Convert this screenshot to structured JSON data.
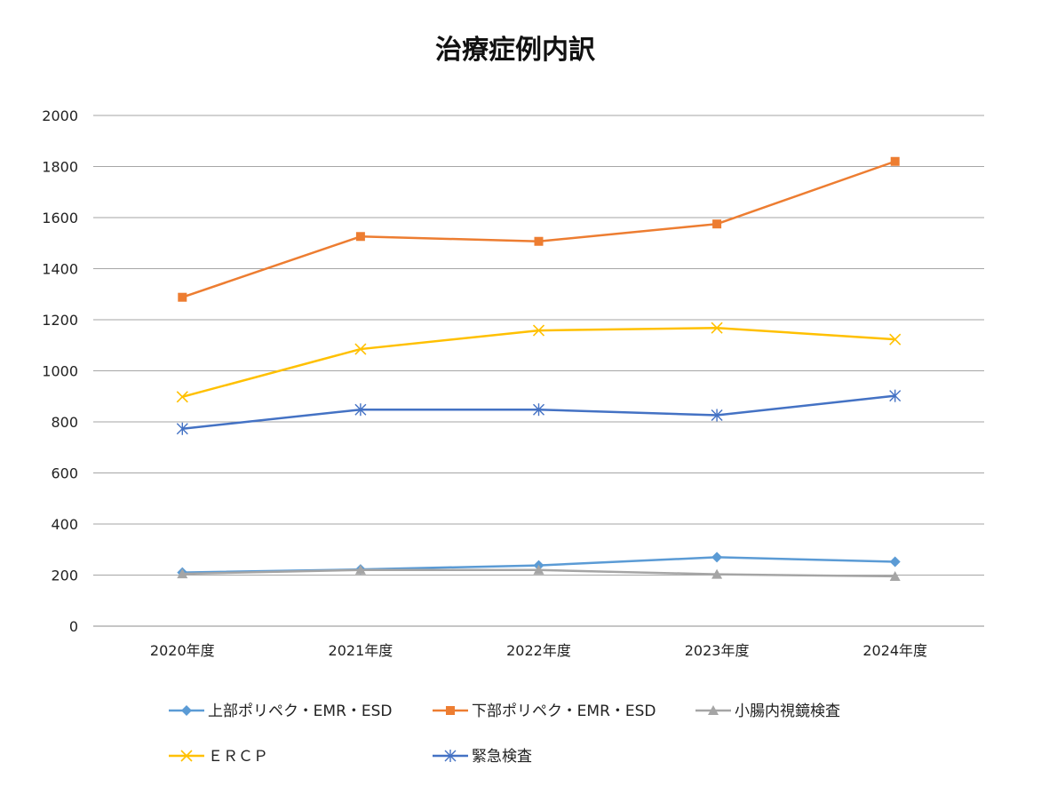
{
  "chart_data": {
    "type": "line",
    "title": "治療症例内訳",
    "xlabel": "",
    "ylabel": "",
    "categories": [
      "2020年度",
      "2021年度",
      "2022年度",
      "2023年度",
      "2024年度"
    ],
    "ylim": [
      0,
      2000
    ],
    "yticks": [
      0,
      200,
      400,
      600,
      800,
      1000,
      1200,
      1400,
      1600,
      1800,
      2000
    ],
    "grid": true,
    "legend_position": "bottom",
    "series": [
      {
        "name": "上部ポリペク・EMR・ESD",
        "color": "#5B9BD5",
        "marker": "diamond",
        "values": [
          210,
          222,
          238,
          270,
          252
        ]
      },
      {
        "name": "下部ポリペク・EMR・ESD",
        "color": "#ED7D31",
        "marker": "square",
        "values": [
          1288,
          1526,
          1507,
          1575,
          1820
        ]
      },
      {
        "name": "小腸内視鏡検査",
        "color": "#A5A5A5",
        "marker": "triangle",
        "values": [
          205,
          220,
          220,
          203,
          195
        ]
      },
      {
        "name": "ＥＲＣＰ",
        "color": "#FFC000",
        "marker": "x",
        "values": [
          898,
          1085,
          1158,
          1168,
          1123
        ]
      },
      {
        "name": "緊急検査",
        "color": "#4472C4",
        "marker": "star",
        "values": [
          773,
          848,
          848,
          826,
          902
        ]
      }
    ]
  }
}
